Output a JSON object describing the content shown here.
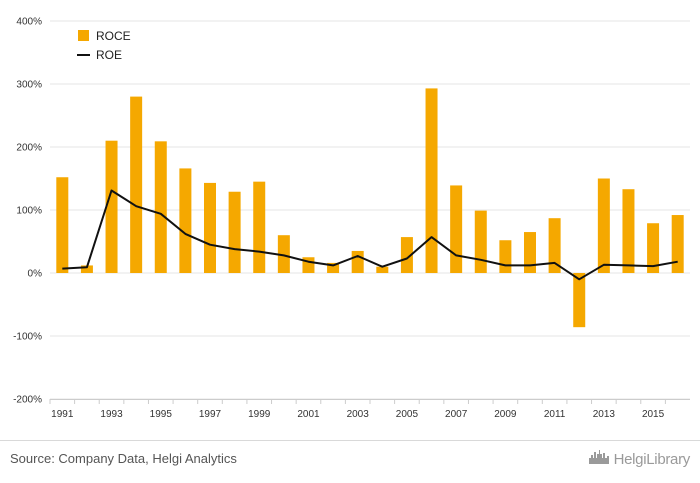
{
  "chart_data": {
    "type": "bar",
    "x": [
      "1991",
      "1992",
      "1993",
      "1994",
      "1995",
      "1996",
      "1997",
      "1998",
      "1999",
      "2000",
      "2001",
      "2002",
      "2003",
      "2004",
      "2005",
      "2006",
      "2007",
      "2008",
      "2009",
      "2010",
      "2011",
      "2012",
      "2013",
      "2014",
      "2015",
      "2016"
    ],
    "x_tick_labels": [
      "1991",
      "1993",
      "1995",
      "1997",
      "1999",
      "2001",
      "2003",
      "2005",
      "2007",
      "2009",
      "2011",
      "2013",
      "2015"
    ],
    "y_tick_labels": [
      "400%",
      "300%",
      "200%",
      "100%",
      "0%",
      "-100%",
      "-200%"
    ],
    "y_ticks": [
      400,
      300,
      200,
      100,
      0,
      -100,
      -200
    ],
    "ylim": [
      -200,
      400
    ],
    "grid": true,
    "legend_position": "top-left",
    "series": [
      {
        "name": "ROCE",
        "type": "bar",
        "color": "#f5a800",
        "values": [
          152,
          12,
          210,
          280,
          209,
          166,
          143,
          129,
          145,
          60,
          25,
          16,
          35,
          10,
          57,
          293,
          139,
          99,
          52,
          65,
          87,
          -86,
          150,
          133,
          79,
          92
        ]
      },
      {
        "name": "ROE",
        "type": "line",
        "color": "#111111",
        "values": [
          7,
          9,
          131,
          106,
          94,
          62,
          45,
          38,
          34,
          28,
          18,
          12,
          27,
          10,
          23,
          57,
          28,
          21,
          12,
          12,
          16,
          -10,
          13,
          12,
          11,
          18
        ]
      }
    ]
  },
  "legend": [
    {
      "label": "ROCE",
      "swatch": "bar",
      "color": "#f5a800"
    },
    {
      "label": "ROE",
      "swatch": "line",
      "color": "#111111"
    }
  ],
  "footer": {
    "source": "Source: Company Data, Helgi Analytics",
    "brand": "HelgiLibrary",
    "brand_icon": "city-skyline-icon"
  }
}
